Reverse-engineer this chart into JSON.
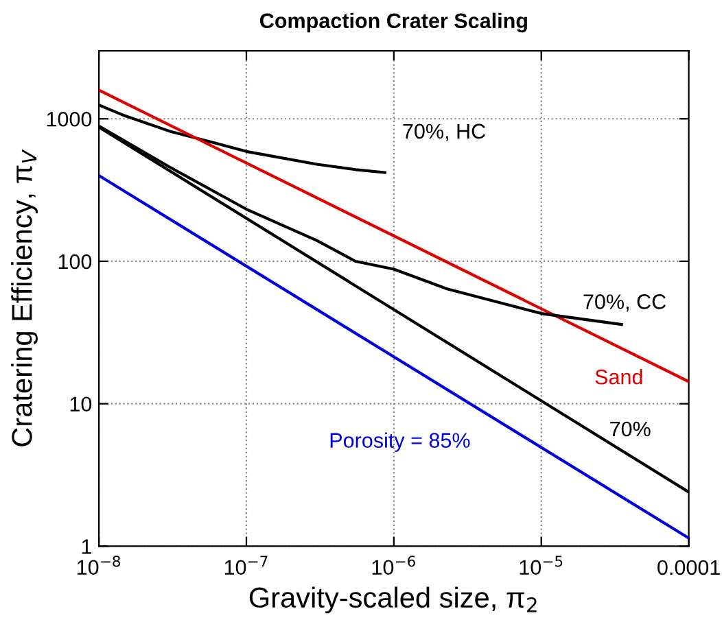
{
  "chart_data": {
    "type": "line",
    "title": "Compaction Crater Scaling",
    "xlabel": "Gravity-scaled size, π$_{2}$",
    "ylabel": "Cratering Efficiency, π$_{V}$",
    "log": "xy",
    "grid": true,
    "legend": false,
    "marker": "none",
    "line_style": "solid",
    "xlim": [
      1e-08,
      0.0001
    ],
    "ylim": [
      1,
      3000
    ],
    "xticks": [
      {
        "value": 1e-08,
        "label": "10$^{−8}$"
      },
      {
        "value": 1e-07,
        "label": "10$^{−7}$"
      },
      {
        "value": 1e-06,
        "label": "10$^{−6}$"
      },
      {
        "value": 1e-05,
        "label": "10$^{−5}$"
      },
      {
        "value": 0.0001,
        "label": "0.0001"
      }
    ],
    "yticks": [
      1,
      10,
      100,
      1000
    ],
    "series": [
      {
        "name": "70%, HC",
        "color": "#000000",
        "x": [
          1e-08,
          1.5e-08,
          3e-08,
          6e-08,
          1e-07,
          3e-07,
          5.5e-07,
          8.7e-07
        ],
        "values": [
          1250,
          1050,
          820,
          680,
          590,
          480,
          440,
          420
        ]
      },
      {
        "name": "Sand",
        "color": "#e00000",
        "x": [
          1e-08,
          0.0001
        ],
        "values": [
          1590,
          14.3
        ]
      },
      {
        "name": "70%, CC",
        "color": "#000000",
        "x": [
          1e-08,
          3e-08,
          1e-07,
          3e-07,
          5.5e-07,
          1e-06,
          2.3e-06,
          1e-05,
          3.5e-05
        ],
        "values": [
          890,
          460,
          232,
          140,
          100,
          88,
          64,
          43,
          36
        ]
      },
      {
        "name": "70%",
        "color": "#000000",
        "x": [
          1e-08,
          0.0001
        ],
        "values": [
          875,
          2.4
        ]
      },
      {
        "name": "Porosity = 85%",
        "color": "#0000dd",
        "x": [
          1e-08,
          0.0001
        ],
        "values": [
          400,
          1.14
        ]
      }
    ]
  }
}
